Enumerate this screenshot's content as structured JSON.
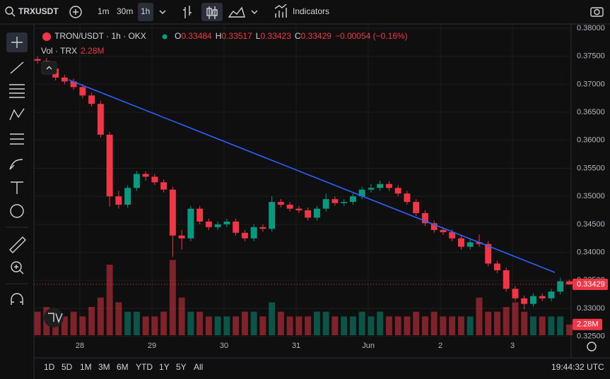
{
  "toolbar": {
    "symbol": "TRXUSDT",
    "intervals": [
      "1m",
      "30m",
      "1h"
    ],
    "indicators": "Indicators"
  },
  "legend": {
    "title": "TRON/USDT · 1h · OKX",
    "ohlc": [
      {
        "key": "O",
        "value": "0.33484"
      },
      {
        "key": "H",
        "value": "0.33517"
      },
      {
        "key": "L",
        "value": "0.33423"
      },
      {
        "key": "C",
        "value": "0.33429"
      }
    ],
    "change": "−0.00054 (−0.16%)",
    "volume_label": "Vol · TRX",
    "volume_value": "2.28M"
  },
  "chart_data": {
    "type": "candlestick",
    "ohlc": [
      [
        0.3745,
        0.375,
        0.3737,
        0.3742
      ],
      [
        0.3742,
        0.3747,
        0.3723,
        0.3728
      ],
      [
        0.3728,
        0.3733,
        0.3707,
        0.3712
      ],
      [
        0.3712,
        0.3717,
        0.37,
        0.3705
      ],
      [
        0.3705,
        0.371,
        0.369,
        0.3695
      ],
      [
        0.3695,
        0.37,
        0.3675,
        0.368
      ],
      [
        0.368,
        0.3685,
        0.366,
        0.3665
      ],
      [
        0.3665,
        0.367,
        0.3605,
        0.361
      ],
      [
        0.361,
        0.3615,
        0.3482,
        0.35
      ],
      [
        0.35,
        0.351,
        0.3478,
        0.3485
      ],
      [
        0.3485,
        0.352,
        0.348,
        0.3515
      ],
      [
        0.3515,
        0.3545,
        0.351,
        0.354
      ],
      [
        0.354,
        0.3545,
        0.3528,
        0.3535
      ],
      [
        0.3535,
        0.354,
        0.352,
        0.3525
      ],
      [
        0.3525,
        0.353,
        0.3507,
        0.3512
      ],
      [
        0.3512,
        0.3517,
        0.3392,
        0.343
      ],
      [
        0.343,
        0.344,
        0.3405,
        0.3425
      ],
      [
        0.3425,
        0.3483,
        0.342,
        0.3478
      ],
      [
        0.3478,
        0.3483,
        0.345,
        0.3455
      ],
      [
        0.3455,
        0.346,
        0.344,
        0.3445
      ],
      [
        0.3445,
        0.3455,
        0.344,
        0.345
      ],
      [
        0.345,
        0.346,
        0.3445,
        0.3455
      ],
      [
        0.3455,
        0.346,
        0.343,
        0.3435
      ],
      [
        0.3435,
        0.344,
        0.342,
        0.3425
      ],
      [
        0.3425,
        0.345,
        0.342,
        0.3445
      ],
      [
        0.3445,
        0.345,
        0.3437,
        0.3442
      ],
      [
        0.3442,
        0.35,
        0.3437,
        0.349
      ],
      [
        0.349,
        0.3495,
        0.348,
        0.3485
      ],
      [
        0.3485,
        0.349,
        0.3473,
        0.3478
      ],
      [
        0.3478,
        0.3483,
        0.347,
        0.3475
      ],
      [
        0.3475,
        0.348,
        0.3457,
        0.3462
      ],
      [
        0.3462,
        0.3483,
        0.3457,
        0.3478
      ],
      [
        0.3478,
        0.3505,
        0.3473,
        0.3495
      ],
      [
        0.3495,
        0.35,
        0.3483,
        0.3488
      ],
      [
        0.3488,
        0.3495,
        0.3483,
        0.349
      ],
      [
        0.349,
        0.3505,
        0.3485,
        0.35
      ],
      [
        0.35,
        0.3517,
        0.3495,
        0.3512
      ],
      [
        0.3512,
        0.3522,
        0.3507,
        0.3515
      ],
      [
        0.3515,
        0.3528,
        0.351,
        0.3522
      ],
      [
        0.3522,
        0.3527,
        0.351,
        0.3515
      ],
      [
        0.3515,
        0.352,
        0.35,
        0.3505
      ],
      [
        0.3505,
        0.351,
        0.3485,
        0.349
      ],
      [
        0.349,
        0.3495,
        0.3465,
        0.347
      ],
      [
        0.347,
        0.3475,
        0.3447,
        0.3452
      ],
      [
        0.3452,
        0.3457,
        0.3435,
        0.344
      ],
      [
        0.344,
        0.3445,
        0.3431,
        0.3436
      ],
      [
        0.3436,
        0.3441,
        0.342,
        0.3425
      ],
      [
        0.3425,
        0.343,
        0.3405,
        0.341
      ],
      [
        0.341,
        0.3423,
        0.3405,
        0.3418
      ],
      [
        0.3418,
        0.3432,
        0.341,
        0.3415
      ],
      [
        0.3415,
        0.342,
        0.3375,
        0.338
      ],
      [
        0.338,
        0.3385,
        0.3363,
        0.3368
      ],
      [
        0.3368,
        0.3373,
        0.333,
        0.3335
      ],
      [
        0.3335,
        0.334,
        0.3313,
        0.3318
      ],
      [
        0.3318,
        0.3323,
        0.3298,
        0.3308
      ],
      [
        0.3308,
        0.3327,
        0.3303,
        0.3322
      ],
      [
        0.3322,
        0.3327,
        0.3313,
        0.3318
      ],
      [
        0.3318,
        0.3335,
        0.3313,
        0.333
      ],
      [
        0.333,
        0.3355,
        0.3325,
        0.33484
      ],
      [
        0.33484,
        0.33517,
        0.33423,
        0.33429
      ]
    ],
    "volume": [
      5,
      6,
      5,
      4,
      5,
      4,
      6,
      8,
      15,
      7,
      5,
      5,
      4,
      4,
      5,
      16,
      8,
      5,
      5,
      4,
      4,
      4,
      4,
      5,
      5,
      4,
      7,
      5,
      4,
      4,
      4,
      5,
      5,
      4,
      4,
      4,
      5,
      4,
      5,
      4,
      4,
      4,
      5,
      4,
      5,
      4,
      4,
      4,
      4,
      8,
      5,
      5,
      6,
      7,
      5,
      4,
      4,
      4,
      4,
      2.28
    ],
    "ylim": [
      0.32521,
      0.38063
    ],
    "yticks": [
      {
        "value": 0.38,
        "label": "0.38000"
      },
      {
        "value": 0.375,
        "label": "0.37500"
      },
      {
        "value": 0.37,
        "label": "0.37000"
      },
      {
        "value": 0.365,
        "label": "0.36500"
      },
      {
        "value": 0.36,
        "label": "0.36000"
      },
      {
        "value": 0.355,
        "label": "0.35500"
      },
      {
        "value": 0.35,
        "label": "0.35000"
      },
      {
        "value": 0.345,
        "label": "0.34500"
      },
      {
        "value": 0.34,
        "label": "0.34000"
      },
      {
        "value": 0.335,
        "label": "0.33500"
      },
      {
        "value": 0.33,
        "label": "0.33000"
      },
      {
        "value": 0.325,
        "label": "0.32500"
      }
    ],
    "volume_ylim": [
      0,
      66
    ],
    "xlim": [
      -0.4,
      59.2
    ],
    "xticks": [
      {
        "value": 4.7,
        "label": "28"
      },
      {
        "value": 12.7,
        "label": "29"
      },
      {
        "value": 20.7,
        "label": "30"
      },
      {
        "value": 28.7,
        "label": "31"
      },
      {
        "value": 36.7,
        "label": "Jun"
      },
      {
        "value": 44.7,
        "label": "2"
      },
      {
        "value": 52.7,
        "label": "3"
      }
    ],
    "last_price": 0.33429,
    "last_volume": {
      "value": 2.28,
      "label": "2.28M"
    },
    "up_color": "#089981",
    "down_color": "#f23645",
    "grid": true
  },
  "range_buttons": [
    "1D",
    "5D",
    "1M",
    "3M",
    "6M",
    "YTD",
    "1Y",
    "5Y",
    "All"
  ],
  "clock": "19:44:32 UTC"
}
